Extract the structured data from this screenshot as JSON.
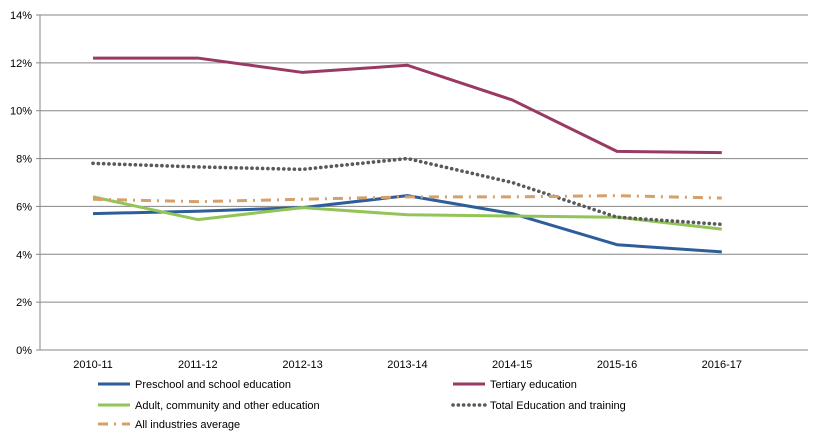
{
  "chart_data": {
    "type": "line",
    "title": "",
    "xlabel": "",
    "ylabel": "",
    "categories": [
      "2010-11",
      "2011-12",
      "2012-13",
      "2013-14",
      "2014-15",
      "2015-16",
      "2016-17"
    ],
    "ylim": [
      0,
      14
    ],
    "yticks": [
      0,
      2,
      4,
      6,
      8,
      10,
      12,
      14
    ],
    "ytick_labels": [
      "0%",
      "2%",
      "4%",
      "6%",
      "8%",
      "10%",
      "12%",
      "14%"
    ],
    "grid": true,
    "legend_position": "bottom",
    "series": [
      {
        "name": "Preschool and school education",
        "color": "#2E5E99",
        "style": "solid",
        "values": [
          5.7,
          5.8,
          5.95,
          6.45,
          5.7,
          4.4,
          4.1
        ]
      },
      {
        "name": "Tertiary education",
        "color": "#983A63",
        "style": "solid",
        "values": [
          12.2,
          12.2,
          11.6,
          11.9,
          10.45,
          8.3,
          8.25
        ]
      },
      {
        "name": "Adult, community and other education",
        "color": "#92C557",
        "style": "solid",
        "values": [
          6.4,
          5.45,
          5.95,
          5.65,
          5.6,
          5.55,
          5.05
        ]
      },
      {
        "name": "Total Education and training",
        "color": "#595959",
        "style": "dotted",
        "values": [
          7.8,
          7.65,
          7.55,
          8.0,
          7.0,
          5.55,
          5.25
        ]
      },
      {
        "name": "All industries average",
        "color": "#D6A06A",
        "style": "dashdot",
        "values": [
          6.3,
          6.2,
          6.3,
          6.4,
          6.4,
          6.45,
          6.35
        ]
      }
    ]
  }
}
